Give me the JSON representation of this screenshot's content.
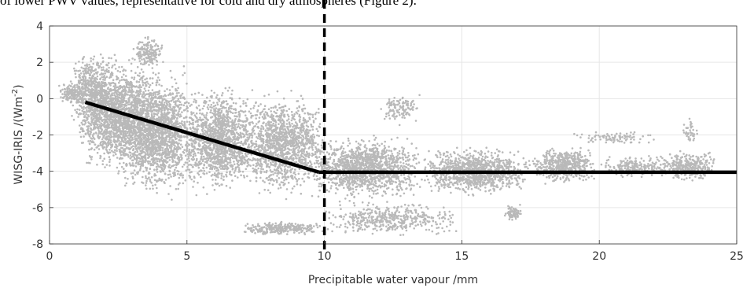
{
  "caption": "of lower PWV values, representative for cold and dry atmospheres (Figure 2).",
  "chart_data": {
    "type": "scatter",
    "xlabel": "Precipitable water vapour /mm",
    "ylabel_main": "WISG-IRIS /(Wm",
    "ylabel_sup": "-2",
    "ylabel_close": ")",
    "xlim": [
      0,
      25
    ],
    "ylim": [
      -8,
      4
    ],
    "xticks": [
      0,
      5,
      10,
      15,
      20,
      25
    ],
    "yticks": [
      -8,
      -6,
      -4,
      -2,
      0,
      2,
      4
    ],
    "grid": true,
    "colors": {
      "points": "#b9b9b9",
      "fit": "#000000",
      "threshold": "#000000"
    },
    "scatter_clusters": [
      {
        "xmin": 0.3,
        "xmax": 1.3,
        "ymin": -0.4,
        "ymax": 1.0,
        "n": 150
      },
      {
        "xmin": 0.8,
        "xmax": 2.2,
        "ymin": -2.2,
        "ymax": 2.8,
        "n": 500
      },
      {
        "xmin": 1.0,
        "xmax": 4.0,
        "ymin": -4.5,
        "ymax": 2.8,
        "n": 1700
      },
      {
        "xmin": 2.5,
        "xmax": 5.5,
        "ymin": -5.8,
        "ymax": 2.0,
        "n": 1700
      },
      {
        "xmin": 3.0,
        "xmax": 4.2,
        "ymin": 1.5,
        "ymax": 3.6,
        "n": 160
      },
      {
        "xmin": 5.0,
        "xmax": 7.5,
        "ymin": -5.5,
        "ymax": 1.0,
        "n": 1300
      },
      {
        "xmin": 7.0,
        "xmax": 10.0,
        "ymin": -5.8,
        "ymax": 0.8,
        "n": 1300
      },
      {
        "xmin": 7.0,
        "xmax": 10.0,
        "ymin": -7.6,
        "ymax": -6.7,
        "n": 260
      },
      {
        "xmin": 9.5,
        "xmax": 13.5,
        "ymin": -5.8,
        "ymax": -1.8,
        "n": 1300
      },
      {
        "xmin": 10.0,
        "xmax": 15.0,
        "ymin": -7.7,
        "ymax": -5.6,
        "n": 450
      },
      {
        "xmin": 12.0,
        "xmax": 13.5,
        "ymin": -1.5,
        "ymax": 0.4,
        "n": 120
      },
      {
        "xmin": 13.5,
        "xmax": 17.5,
        "ymin": -5.5,
        "ymax": -2.5,
        "n": 1000
      },
      {
        "xmin": 16.5,
        "xmax": 17.2,
        "ymin": -6.8,
        "ymax": -5.8,
        "n": 70
      },
      {
        "xmin": 17.5,
        "xmax": 20.0,
        "ymin": -4.8,
        "ymax": -2.5,
        "n": 500
      },
      {
        "xmin": 19.0,
        "xmax": 22.0,
        "ymin": -2.6,
        "ymax": -1.7,
        "n": 90
      },
      {
        "xmin": 20.0,
        "xmax": 22.5,
        "ymin": -4.5,
        "ymax": -3.0,
        "n": 180
      },
      {
        "xmin": 22.0,
        "xmax": 24.3,
        "ymin": -4.6,
        "ymax": -2.8,
        "n": 300
      },
      {
        "xmin": 23.0,
        "xmax": 23.6,
        "ymin": -2.8,
        "ymax": -0.8,
        "n": 40
      }
    ],
    "fit_segments": [
      {
        "x": [
          1.3,
          9.8
        ],
        "y": [
          -0.2,
          -4.05
        ]
      },
      {
        "x": [
          9.8,
          25.0
        ],
        "y": [
          -4.05,
          -4.05
        ]
      }
    ],
    "threshold_x": 10
  }
}
